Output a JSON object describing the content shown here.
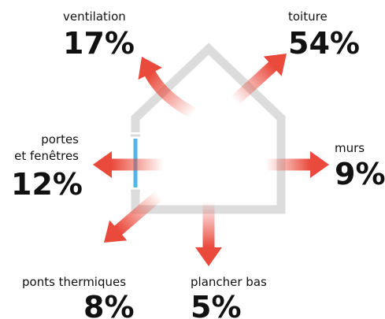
{
  "items": [
    {
      "label": "ventilation",
      "value": "17%"
    },
    {
      "label": "toiture",
      "value": "54%"
    },
    {
      "label": "portes",
      "label2": "et fenêtres",
      "value": "12%"
    },
    {
      "label": "murs",
      "value": "9%"
    },
    {
      "label": "ponts thermiques",
      "value": "8%"
    },
    {
      "label": "plancher bas",
      "value": "5%"
    }
  ]
}
